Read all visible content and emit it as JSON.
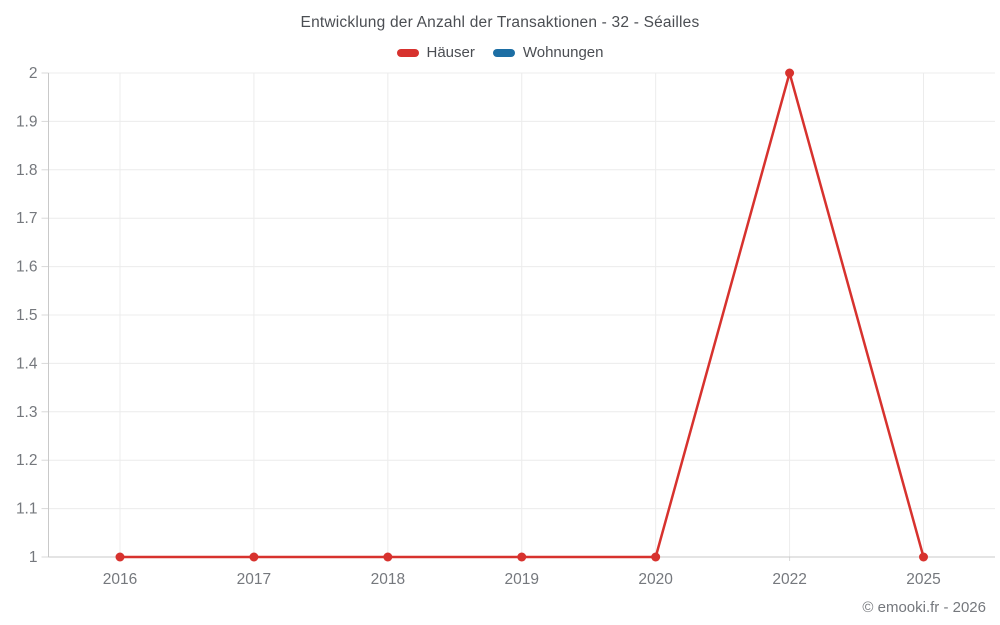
{
  "title": "Entwicklung der Anzahl der Transaktionen - 32 - Séailles",
  "footer": "© emooki.fr - 2026",
  "legend": {
    "items": [
      {
        "label": "Häuser",
        "color": "#d7322e"
      },
      {
        "label": "Wohnungen",
        "color": "#1c6ea4"
      }
    ]
  },
  "chart_data": {
    "type": "line",
    "title": "Entwicklung der Anzahl der Transaktionen - 32 - Séailles",
    "categories": [
      "2016",
      "2017",
      "2018",
      "2019",
      "2020",
      "2022",
      "2025"
    ],
    "series": [
      {
        "name": "Häuser",
        "color": "#d7322e",
        "values": [
          1,
          1,
          1,
          1,
          1,
          2,
          1
        ]
      },
      {
        "name": "Wohnungen",
        "color": "#1c6ea4",
        "values": []
      }
    ],
    "ylim": [
      1,
      2
    ],
    "yticks": [
      1,
      1.1,
      1.2,
      1.3,
      1.4,
      1.5,
      1.6,
      1.7,
      1.8,
      1.9,
      2
    ],
    "xlabel": "",
    "ylabel": "",
    "grid": true,
    "legend_position": "top"
  },
  "colors": {
    "background": "#ffffff",
    "grid": "#ececec",
    "axis": "#c9c9c9",
    "tick": "#d9d9d9",
    "tick_label": "#75787d",
    "title_text": "#4b4e53"
  }
}
